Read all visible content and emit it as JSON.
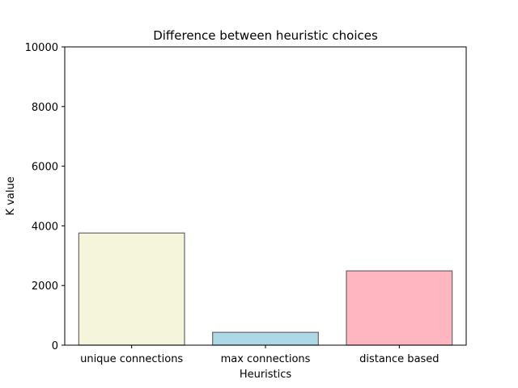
{
  "chart_data": {
    "type": "bar",
    "title": "Difference between heuristic choices",
    "xlabel": "Heuristics",
    "ylabel": "K value",
    "categories": [
      "unique connections",
      "max connections",
      "distance based"
    ],
    "values": [
      3760,
      430,
      2490
    ],
    "colors": [
      "#f5f5dc",
      "#add8e6",
      "#ffb6c1"
    ],
    "edge_color": "#666666",
    "ylim": [
      0,
      10000
    ],
    "yticks": [
      0,
      2000,
      4000,
      6000,
      8000,
      10000
    ],
    "grid": false,
    "legend": "none"
  }
}
